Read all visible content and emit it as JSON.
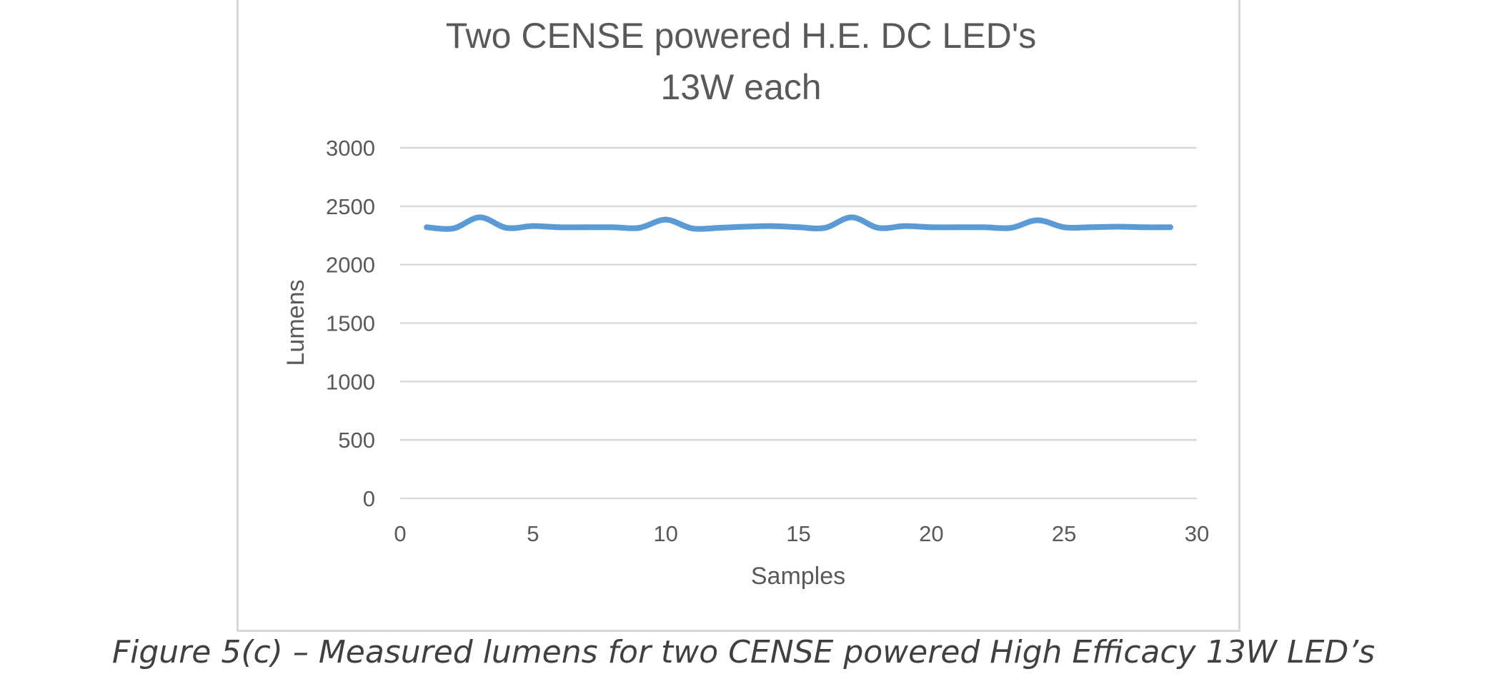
{
  "chart_data": {
    "type": "line",
    "title_lines": [
      "Two CENSE powered H.E. DC LED's",
      "13W each"
    ],
    "xlabel": "Samples",
    "ylabel": "Lumens",
    "xlim": [
      0,
      30
    ],
    "ylim": [
      0,
      3000
    ],
    "xticks": [
      0,
      5,
      10,
      15,
      20,
      25,
      30
    ],
    "yticks": [
      0,
      500,
      1000,
      1500,
      2000,
      2500,
      3000
    ],
    "grid": "horizontal",
    "legend": "none",
    "series": [
      {
        "name": "Lumens",
        "color": "#5b9bd5",
        "x": [
          1,
          2,
          3,
          4,
          5,
          6,
          7,
          8,
          9,
          10,
          11,
          12,
          13,
          14,
          15,
          16,
          17,
          18,
          19,
          20,
          21,
          22,
          23,
          24,
          25,
          26,
          27,
          28,
          29
        ],
        "values": [
          2320,
          2310,
          2405,
          2315,
          2330,
          2320,
          2320,
          2320,
          2315,
          2385,
          2310,
          2315,
          2325,
          2330,
          2320,
          2315,
          2405,
          2315,
          2330,
          2320,
          2320,
          2320,
          2315,
          2380,
          2320,
          2320,
          2325,
          2320,
          2320
        ]
      }
    ]
  },
  "caption": "Figure 5(c) – Measured lumens for two CENSE powered High Efficacy 13W LED’s"
}
